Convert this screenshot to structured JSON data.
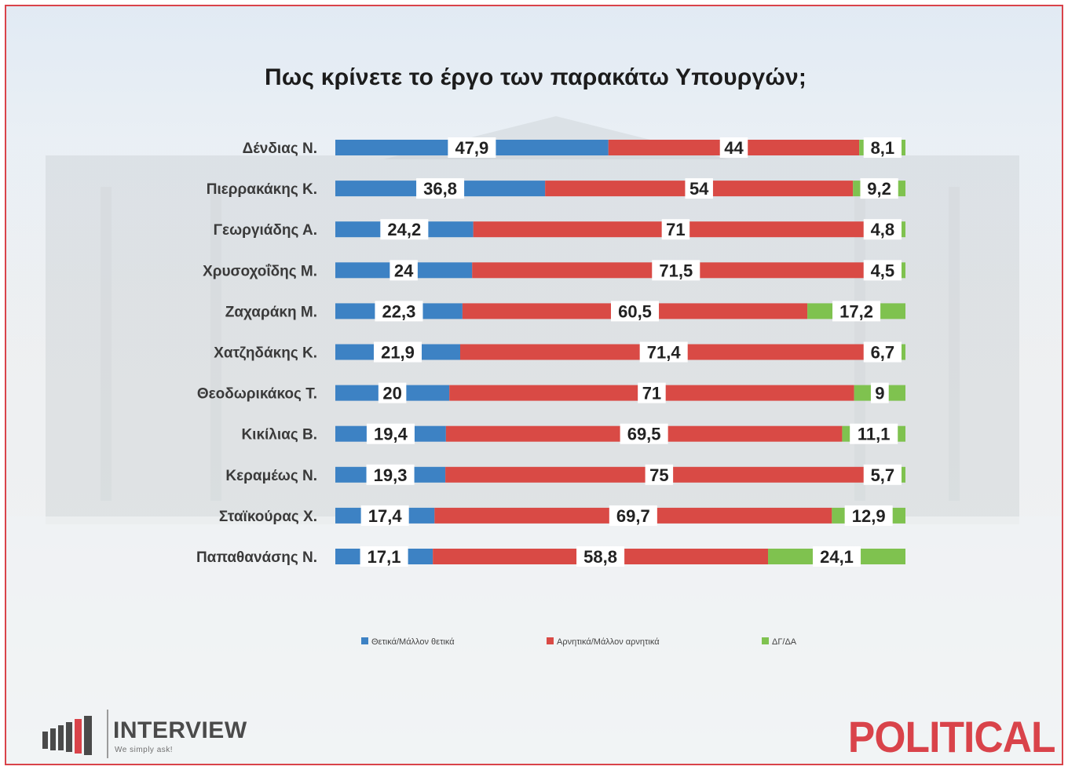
{
  "chart_data": {
    "type": "bar",
    "orientation": "horizontal",
    "stacked": "percent",
    "title": "Πως κρίνετε το έργο των παρακάτω Υπουργών;",
    "categories": [
      "Δένδιας Ν.",
      "Πιερρακάκης Κ.",
      "Γεωργιάδης Α.",
      "Χρυσοχοΐδης Μ.",
      "Ζαχαράκη Μ.",
      "Χατζηδάκης Κ.",
      "Θεοδωρικάκος Τ.",
      "Κικίλιας Β.",
      "Κεραμέως Ν.",
      "Σταϊκούρας Χ.",
      "Παπαθανάσης Ν."
    ],
    "series": [
      {
        "name": "Θετικά/Μάλλον θετικά",
        "color": "#3d82c4",
        "values": [
          47.9,
          36.8,
          24.2,
          24,
          22.3,
          21.9,
          20,
          19.4,
          19.3,
          17.4,
          17.1
        ],
        "labels": [
          "47,9",
          "36,8",
          "24,2",
          "24",
          "22,3",
          "21,9",
          "20",
          "19,4",
          "19,3",
          "17,4",
          "17,1"
        ]
      },
      {
        "name": "Αρνητικά/Μάλλον αρνητικά",
        "color": "#d94a45",
        "values": [
          44,
          54,
          71,
          71.5,
          60.5,
          71.4,
          71,
          69.5,
          75,
          69.7,
          58.8
        ],
        "labels": [
          "44",
          "54",
          "71",
          "71,5",
          "60,5",
          "71,4",
          "71",
          "69,5",
          "75",
          "69,7",
          "58,8"
        ]
      },
      {
        "name": "ΔΓ/ΔΑ",
        "color": "#7fc24f",
        "values": [
          8.1,
          9.2,
          4.8,
          4.5,
          17.2,
          6.7,
          9,
          11.1,
          5.7,
          12.9,
          24.1
        ],
        "labels": [
          "8,1",
          "9,2",
          "4,8",
          "4,5",
          "17,2",
          "6,7",
          "9",
          "11,1",
          "5,7",
          "12,9",
          "24,1"
        ]
      }
    ],
    "xlim": [
      0,
      100
    ],
    "grid": false,
    "legend_position": "bottom"
  },
  "logos": {
    "interview": {
      "name": "INTERVIEW",
      "tagline": "We simply ask!",
      "color": "#4a4a4a"
    },
    "political": {
      "name": "POLITICAL",
      "color": "#d9434a"
    }
  },
  "colors": {
    "frame_border": "#d9434a",
    "label_box": "#ffffff",
    "text": "#1c1c1c"
  }
}
